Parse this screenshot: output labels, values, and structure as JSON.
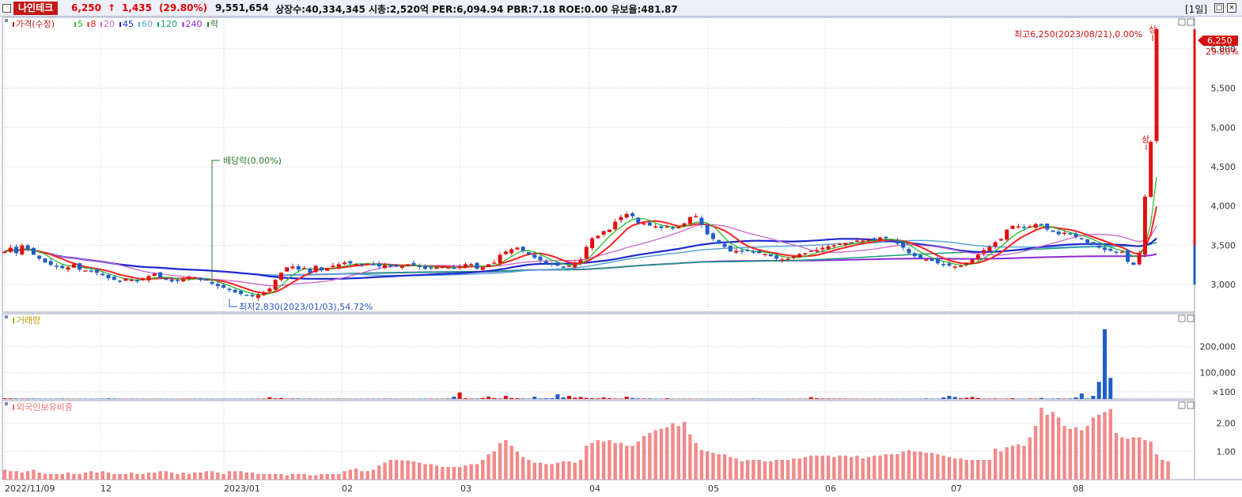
{
  "header": {
    "stock_name": "나인테크",
    "price": "6,250",
    "arrow": "↑",
    "change": "1,435",
    "change_pct": "(29.80%)",
    "volume": "9,551,654",
    "info": "상장수:40,334,345 시총:2,520억 PER:6,094.94 PBR:7.18 ROE:0.00 유보율:481.87",
    "period": "[1일]",
    "btn_restore": "□",
    "btn_close": "×"
  },
  "price_panel": {
    "legend": [
      {
        "label": "가격(수정)",
        "color": "#c41818"
      },
      {
        "label": "5",
        "color": "#22bb22"
      },
      {
        "label": "8",
        "color": "#ff2222"
      },
      {
        "label": "20",
        "color": "#cc66cc"
      },
      {
        "label": "45",
        "color": "#1e2bd0"
      },
      {
        "label": "60",
        "color": "#5aa6d6"
      },
      {
        "label": "120",
        "color": "#18a07a"
      },
      {
        "label": "240",
        "color": "#8a2ad4"
      },
      {
        "label": "락",
        "color": "#2a7a2a"
      }
    ],
    "high_annotation": "최고6,250(2023/08/21),0.00%",
    "low_annotation": "최저2,830(2023/01/03),54.72%",
    "dividend_annotation": "배당락(0.00%)",
    "limit_up_label": "상",
    "price_tag": "6,250",
    "price_tag_pct": "29.80%",
    "y_ticks": [
      "3,000",
      "3,500",
      "4,000",
      "4,500",
      "5,000",
      "5,500",
      "6,000"
    ]
  },
  "volume_panel": {
    "legend": "거래량",
    "y_ticks": [
      "200,000",
      "100,000",
      "×100"
    ]
  },
  "foreign_panel": {
    "legend": "외국인보유비중",
    "y_ticks": [
      "2.00",
      "1.00"
    ]
  },
  "x_labels": [
    "2022/11/09",
    "12",
    "2023/01",
    "02",
    "03",
    "04",
    "05",
    "06",
    "07",
    "08"
  ],
  "chart_data": [
    {
      "type": "candlestick",
      "title": "나인테크 가격(수정)",
      "ylim": [
        2650,
        6400
      ],
      "x_start": "2022/11/09",
      "x_end": "2023/08/21",
      "high": {
        "date": "2023/08/21",
        "value": 6250
      },
      "low": {
        "date": "2023/01/03",
        "value": 2830
      },
      "close": [
        3420,
        3470,
        3400,
        3500,
        3450,
        3380,
        3330,
        3280,
        3250,
        3230,
        3210,
        3220,
        3260,
        3190,
        3180,
        3170,
        3150,
        3120,
        3080,
        3060,
        3040,
        3080,
        3060,
        3050,
        3070,
        3110,
        3140,
        3090,
        3060,
        3040,
        3050,
        3070,
        3100,
        3090,
        3060,
        3050,
        3010,
        2980,
        2960,
        2930,
        2900,
        2880,
        2860,
        2850,
        2870,
        2900,
        2950,
        3060,
        3150,
        3220,
        3230,
        3190,
        3210,
        3150,
        3240,
        3180,
        3210,
        3240,
        3260,
        3280,
        3270,
        3260,
        3250,
        3270,
        3260,
        3230,
        3250,
        3240,
        3230,
        3240,
        3260,
        3250,
        3230,
        3200,
        3210,
        3220,
        3230,
        3220,
        3210,
        3230,
        3260,
        3260,
        3200,
        3220,
        3260,
        3280,
        3380,
        3420,
        3450,
        3470,
        3430,
        3380,
        3340,
        3310,
        3270,
        3260,
        3240,
        3230,
        3240,
        3280,
        3320,
        3480,
        3590,
        3620,
        3680,
        3700,
        3800,
        3860,
        3900,
        3870,
        3780,
        3780,
        3750,
        3740,
        3720,
        3740,
        3720,
        3730,
        3780,
        3860,
        3870,
        3760,
        3640,
        3580,
        3520,
        3480,
        3420,
        3430,
        3420,
        3430,
        3420,
        3400,
        3390,
        3360,
        3330,
        3320,
        3330,
        3360,
        3390,
        3400,
        3430,
        3440,
        3470,
        3490,
        3500,
        3520,
        3530,
        3540,
        3560,
        3560,
        3570,
        3570,
        3600,
        3590,
        3560,
        3520,
        3470,
        3400,
        3360,
        3330,
        3320,
        3300,
        3270,
        3260,
        3240,
        3230,
        3240,
        3280,
        3320,
        3380,
        3440,
        3480,
        3540,
        3580,
        3700,
        3750,
        3740,
        3720,
        3740,
        3770,
        3760,
        3700,
        3670,
        3640,
        3660,
        3640,
        3610,
        3580,
        3530,
        3510,
        3470,
        3440,
        3430,
        3410,
        3420,
        3290,
        3250,
        3400,
        4120,
        4815,
        6250
      ]
    },
    {
      "type": "bar",
      "title": "거래량",
      "ylim": [
        0,
        300000
      ],
      "values": [
        3000,
        2500,
        2200,
        1500,
        1800,
        2000,
        1500,
        1200,
        1000,
        1200,
        1600,
        1100,
        900,
        1000,
        1200,
        1000,
        900,
        1500,
        2500,
        1800,
        1000,
        900,
        1100,
        1000,
        800,
        700,
        800,
        900,
        1000,
        700,
        600,
        700,
        800,
        900,
        1200,
        1000,
        900,
        800,
        1000,
        900,
        1000,
        1100,
        1300,
        1200,
        1500,
        1600,
        7000,
        2500,
        4000,
        1200,
        1800,
        2000,
        1000,
        1500,
        900,
        1200,
        1000,
        1100,
        1000,
        900,
        1000,
        900,
        800,
        1100,
        1000,
        900,
        1200,
        1300,
        1000,
        900,
        800,
        1100,
        1200,
        1300,
        1500,
        1200,
        1000,
        1800,
        9000,
        25000,
        3000,
        2000,
        1800,
        4000,
        9000,
        4000,
        2000,
        12000,
        4000,
        3000,
        2000,
        1500,
        9000,
        2000,
        3000,
        3000,
        18000,
        6000,
        12000,
        5000,
        8000,
        4000,
        3000,
        2500,
        6000,
        3000,
        2000,
        1500,
        9000,
        4000,
        2000,
        2000,
        2000,
        1000,
        900,
        3000,
        1000,
        1000,
        900,
        1200,
        900,
        1000,
        1000,
        1000,
        1000,
        900,
        900,
        800,
        700,
        800,
        2000,
        1500,
        900,
        800,
        700,
        700,
        800,
        700,
        1200,
        1000,
        7000,
        3000,
        2000,
        1800,
        1500,
        1400,
        1200,
        1000,
        900,
        800,
        700,
        800,
        1200,
        900,
        1000,
        900,
        1000,
        900,
        900,
        800,
        2000,
        1500,
        1200,
        6000,
        12000,
        8000,
        3000,
        5000,
        8000,
        4000,
        1500,
        1200,
        2000,
        1000,
        1500,
        3000,
        1200,
        1000,
        2000,
        1500,
        4000,
        1200,
        1500,
        2500,
        1500,
        2000,
        6000,
        21000,
        2000,
        12000,
        65000,
        265000,
        80000
      ]
    },
    {
      "type": "bar",
      "title": "외국인보유비중",
      "ylim": [
        0,
        2.8
      ],
      "values": [
        0.35,
        0.3,
        0.3,
        0.25,
        0.3,
        0.35,
        0.25,
        0.2,
        0.2,
        0.2,
        0.2,
        0.25,
        0.2,
        0.2,
        0.25,
        0.3,
        0.25,
        0.3,
        0.25,
        0.2,
        0.2,
        0.2,
        0.25,
        0.2,
        0.2,
        0.25,
        0.25,
        0.3,
        0.3,
        0.25,
        0.2,
        0.25,
        0.2,
        0.25,
        0.25,
        0.3,
        0.3,
        0.25,
        0.2,
        0.3,
        0.3,
        0.3,
        0.25,
        0.25,
        0.2,
        0.2,
        0.2,
        0.2,
        0.2,
        0.15,
        0.2,
        0.2,
        0.2,
        0.15,
        0.15,
        0.2,
        0.2,
        0.2,
        0.2,
        0.3,
        0.35,
        0.4,
        0.3,
        0.3,
        0.35,
        0.5,
        0.6,
        0.7,
        0.7,
        0.68,
        0.68,
        0.65,
        0.6,
        0.55,
        0.55,
        0.5,
        0.45,
        0.45,
        0.45,
        0.45,
        0.5,
        0.55,
        0.55,
        0.7,
        0.9,
        1.0,
        1.3,
        1.4,
        1.2,
        1.0,
        0.8,
        0.7,
        0.6,
        0.6,
        0.55,
        0.55,
        0.6,
        0.65,
        0.65,
        0.6,
        0.7,
        1.2,
        1.3,
        1.4,
        1.35,
        1.4,
        1.3,
        1.3,
        1.2,
        1.2,
        1.35,
        1.55,
        1.65,
        1.75,
        1.8,
        1.85,
        2.0,
        1.9,
        2.05,
        1.6,
        1.3,
        1.05,
        1.0,
        0.95,
        0.9,
        0.9,
        0.8,
        0.75,
        0.65,
        0.7,
        0.7,
        0.7,
        0.65,
        0.65,
        0.7,
        0.7,
        0.7,
        0.75,
        0.75,
        0.8,
        0.85,
        0.85,
        0.85,
        0.85,
        0.8,
        0.85,
        0.85,
        0.8,
        0.85,
        0.75,
        0.8,
        0.85,
        0.85,
        0.9,
        0.9,
        0.9,
        1.0,
        1.05,
        1.0,
        1.0,
        0.95,
        0.95,
        0.9,
        0.85,
        0.8,
        0.75,
        0.75,
        0.7,
        0.7,
        0.7,
        0.7,
        0.7,
        1.1,
        1.0,
        1.15,
        1.2,
        1.25,
        1.2,
        1.5,
        1.9,
        2.55,
        2.3,
        2.4,
        2.2,
        1.9,
        1.8,
        1.85,
        1.75,
        1.9,
        2.2,
        2.3,
        2.4,
        2.5,
        1.65,
        1.5,
        1.45,
        1.5,
        1.5,
        1.4,
        1.35,
        0.9,
        0.7,
        0.65
      ]
    }
  ]
}
